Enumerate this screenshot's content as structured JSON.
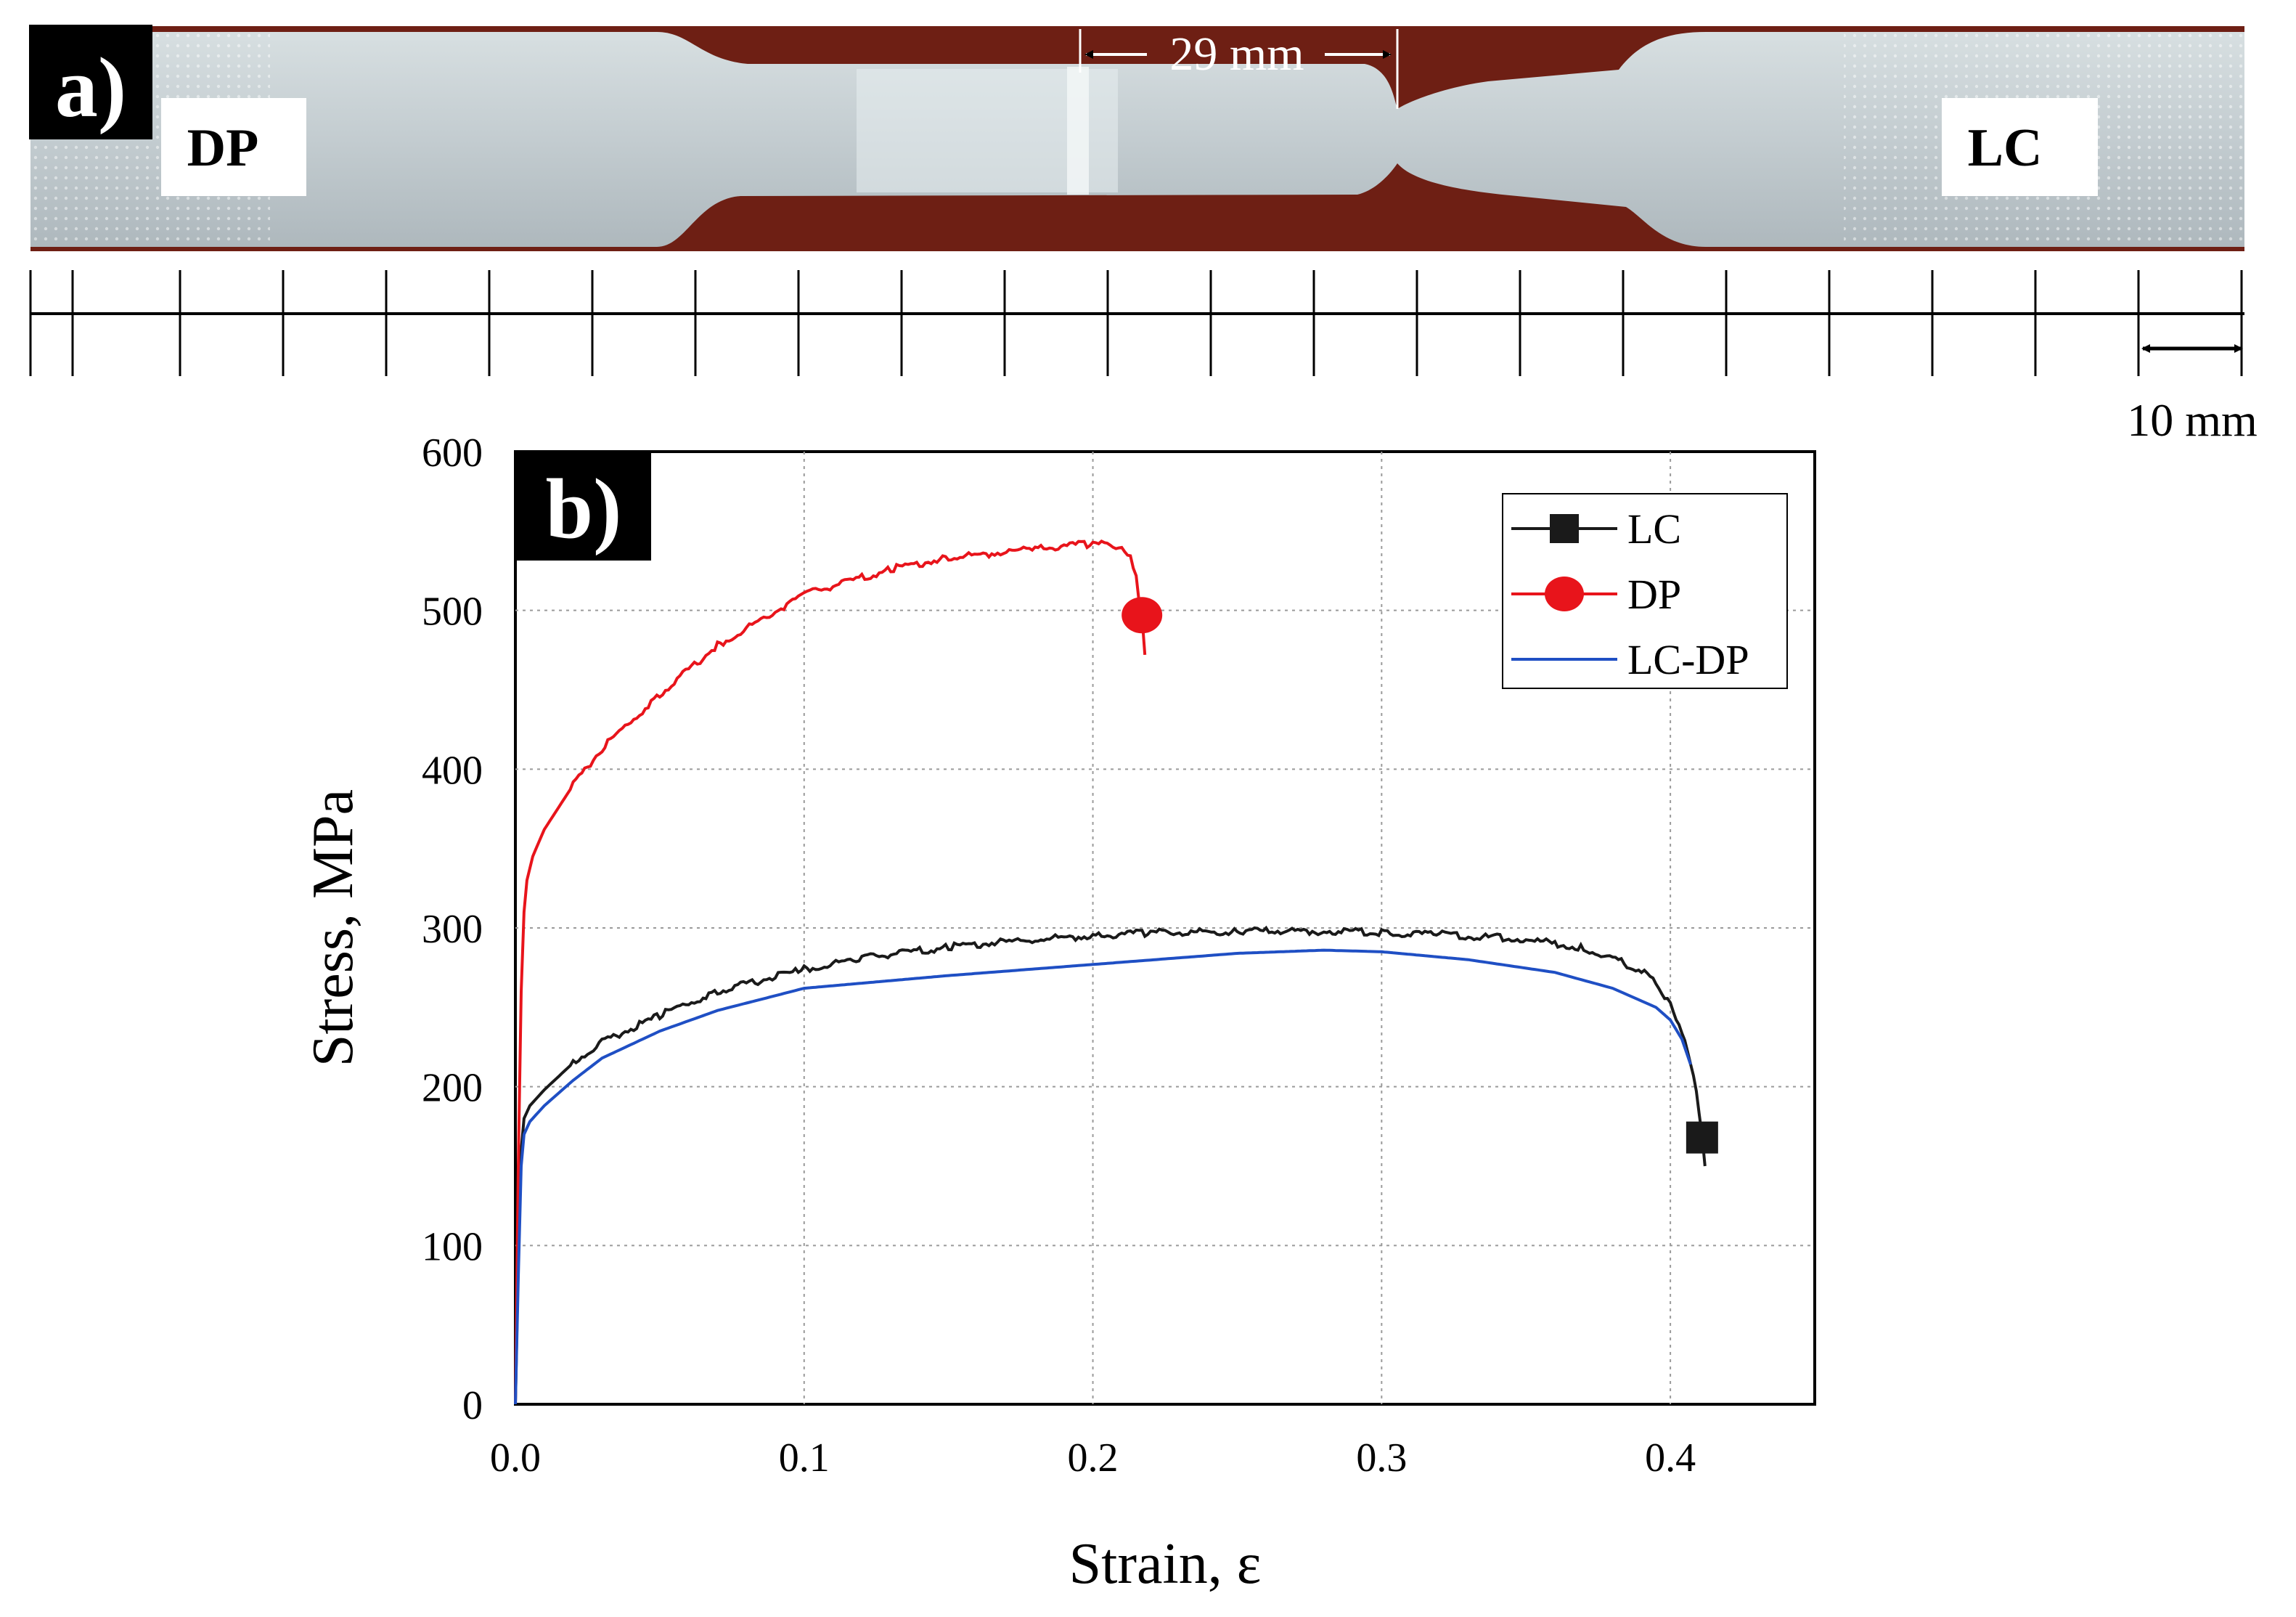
{
  "panel_a": {
    "label": "a)",
    "left_tag": "DP",
    "right_tag": "LC",
    "gauge_length": "29 mm",
    "scale_bar": "10 mm"
  },
  "panel_b": {
    "label": "b)"
  },
  "colors": {
    "LC": "#1a1a1a",
    "DP": "#e8141b",
    "LC-DP": "#1f4fc4",
    "background_wood": "#6e1f14",
    "specimen_metal": "#c6cfd2"
  },
  "chart_data": {
    "type": "line",
    "title": "",
    "xlabel": "Strain, ε",
    "ylabel": "Stress, MPa",
    "xlim": [
      0.0,
      0.45
    ],
    "ylim": [
      0,
      600
    ],
    "xticks": [
      "0.0",
      "0.1",
      "0.2",
      "0.3",
      "0.4"
    ],
    "yticks": [
      "0",
      "100",
      "200",
      "300",
      "400",
      "500",
      "600"
    ],
    "grid": true,
    "legend_position": "top-right",
    "series": [
      {
        "name": "LC",
        "marker": "square",
        "end_marker": [
          0.411,
          168
        ],
        "x": [
          0,
          0.001,
          0.002,
          0.003,
          0.005,
          0.01,
          0.02,
          0.03,
          0.05,
          0.07,
          0.1,
          0.12,
          0.15,
          0.18,
          0.2,
          0.22,
          0.25,
          0.28,
          0.3,
          0.32,
          0.35,
          0.37,
          0.38,
          0.39,
          0.395,
          0.4,
          0.403,
          0.406,
          0.409,
          0.411,
          0.412
        ],
        "y": [
          0,
          90,
          160,
          180,
          188,
          198,
          215,
          228,
          245,
          260,
          274,
          281,
          288,
          293,
          295,
          297,
          298,
          298,
          297,
          296,
          293,
          287,
          281,
          273,
          266,
          252,
          238,
          222,
          198,
          168,
          150
        ]
      },
      {
        "name": "DP",
        "marker": "circle",
        "end_marker": [
          0.217,
          497
        ],
        "x": [
          0,
          0.001,
          0.002,
          0.003,
          0.004,
          0.006,
          0.01,
          0.02,
          0.03,
          0.05,
          0.07,
          0.1,
          0.13,
          0.15,
          0.18,
          0.2,
          0.21,
          0.213,
          0.215,
          0.216,
          0.217,
          0.218
        ],
        "y": [
          0,
          150,
          260,
          310,
          330,
          345,
          362,
          390,
          413,
          447,
          478,
          510,
          526,
          533,
          539,
          542,
          540,
          535,
          520,
          505,
          497,
          472
        ]
      },
      {
        "name": "LC-DP",
        "marker": "none",
        "x": [
          0,
          0.001,
          0.002,
          0.003,
          0.005,
          0.01,
          0.02,
          0.03,
          0.05,
          0.07,
          0.1,
          0.15,
          0.2,
          0.25,
          0.28,
          0.3,
          0.33,
          0.36,
          0.38,
          0.395,
          0.4,
          0.404,
          0.407
        ],
        "y": [
          0,
          80,
          150,
          170,
          178,
          188,
          204,
          218,
          235,
          248,
          262,
          270,
          277,
          284,
          286,
          285,
          280,
          272,
          262,
          250,
          242,
          230,
          214
        ]
      }
    ]
  }
}
